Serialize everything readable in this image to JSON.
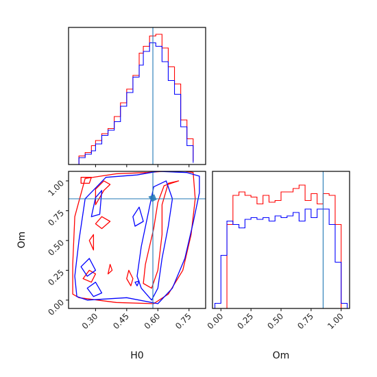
{
  "colors": {
    "series_red": "#ff0000",
    "series_blue": "#0000ff",
    "truth_line": "#1f77b4"
  },
  "chart_data": [
    {
      "type": "histogram",
      "panel": "top-left",
      "parameter": "H0",
      "xlim": [
        0.17,
        0.83
      ],
      "truth": 0.576,
      "bins": [
        0.22,
        0.25,
        0.28,
        0.3,
        0.33,
        0.36,
        0.39,
        0.42,
        0.45,
        0.48,
        0.51,
        0.53,
        0.56,
        0.59,
        0.62,
        0.65,
        0.68,
        0.71,
        0.74,
        0.77
      ],
      "series": [
        {
          "color": "red",
          "counts": [
            0.05,
            0.07,
            0.11,
            0.14,
            0.18,
            0.21,
            0.28,
            0.36,
            0.44,
            0.52,
            0.65,
            0.69,
            0.75,
            0.76,
            0.68,
            0.57,
            0.47,
            0.26,
            0.15,
            0.02
          ]
        },
        {
          "color": "blue",
          "counts": [
            0.04,
            0.06,
            0.08,
            0.12,
            0.17,
            0.2,
            0.25,
            0.34,
            0.42,
            0.51,
            0.58,
            0.66,
            0.71,
            0.69,
            0.6,
            0.49,
            0.41,
            0.22,
            0.11,
            0.01
          ]
        }
      ]
    },
    {
      "type": "histogram",
      "panel": "bottom-right",
      "parameter": "Om",
      "xlim": [
        -0.07,
        1.07
      ],
      "truth": 0.85,
      "xticks": [
        "0.00",
        "0.25",
        "0.50",
        "0.75",
        "1.00"
      ],
      "xlabel": "Om",
      "bins": [
        -0.05,
        0.0,
        0.05,
        0.1,
        0.15,
        0.2,
        0.25,
        0.3,
        0.35,
        0.4,
        0.45,
        0.5,
        0.55,
        0.6,
        0.65,
        0.7,
        0.75,
        0.8,
        0.85,
        0.9,
        0.95,
        1.0,
        1.05
      ],
      "series": [
        {
          "color": "red",
          "counts": [
            0.0,
            0.0,
            0.49,
            0.66,
            0.68,
            0.66,
            0.65,
            0.61,
            0.66,
            0.62,
            0.63,
            0.68,
            0.68,
            0.7,
            0.72,
            0.63,
            0.67,
            0.61,
            0.67,
            0.66,
            0.49,
            0.0
          ]
        },
        {
          "color": "blue",
          "counts": [
            0.03,
            0.31,
            0.51,
            0.49,
            0.47,
            0.52,
            0.53,
            0.52,
            0.53,
            0.51,
            0.54,
            0.53,
            0.54,
            0.56,
            0.51,
            0.58,
            0.53,
            0.58,
            0.58,
            0.49,
            0.27,
            0.03
          ]
        }
      ]
    },
    {
      "type": "contour",
      "panel": "bottom-left",
      "x_parameter": "H0",
      "y_parameter": "Om",
      "xlim": [
        0.17,
        0.83
      ],
      "ylim": [
        -0.07,
        1.08
      ],
      "xticks": [
        "0.30",
        "0.45",
        "0.60",
        "0.75"
      ],
      "yticks": [
        "0.00",
        "0.25",
        "0.50",
        "0.75",
        "1.00"
      ],
      "xlabel": "H0",
      "ylabel": "Om",
      "truth": [
        0.576,
        0.85
      ],
      "series": [
        {
          "color": "red",
          "contours": [
            [
              [
                0.77,
                1.07
              ],
              [
                0.7,
                1.09
              ],
              [
                0.55,
                1.07
              ],
              [
                0.4,
                1.06
              ],
              [
                0.25,
                1.02
              ],
              [
                0.2,
                0.7
              ],
              [
                0.19,
                0.3
              ],
              [
                0.19,
                0.05
              ],
              [
                0.22,
                0.02
              ],
              [
                0.4,
                -0.02
              ],
              [
                0.58,
                -0.03
              ],
              [
                0.65,
                0.05
              ],
              [
                0.72,
                0.25
              ],
              [
                0.76,
                0.55
              ],
              [
                0.78,
                0.85
              ],
              [
                0.77,
                1.07
              ]
            ],
            [
              [
                0.7,
                1.0
              ],
              [
                0.65,
                0.98
              ],
              [
                0.62,
                0.8
              ],
              [
                0.62,
                0.55
              ],
              [
                0.6,
                0.25
              ],
              [
                0.57,
                0.1
              ],
              [
                0.53,
                0.14
              ],
              [
                0.54,
                0.3
              ],
              [
                0.58,
                0.6
              ],
              [
                0.6,
                0.82
              ],
              [
                0.63,
                0.96
              ],
              [
                0.7,
                1.0
              ]
            ],
            [
              [
                0.23,
                0.98
              ],
              [
                0.27,
                0.98
              ],
              [
                0.28,
                1.03
              ],
              [
                0.23,
                1.03
              ],
              [
                0.23,
                0.98
              ]
            ],
            [
              [
                0.3,
                0.8
              ],
              [
                0.34,
                0.92
              ],
              [
                0.37,
                0.97
              ],
              [
                0.34,
                1.0
              ],
              [
                0.3,
                0.93
              ],
              [
                0.3,
                0.8
              ]
            ],
            [
              [
                0.33,
                0.7
              ],
              [
                0.37,
                0.66
              ],
              [
                0.33,
                0.6
              ],
              [
                0.3,
                0.64
              ],
              [
                0.33,
                0.7
              ]
            ],
            [
              [
                0.27,
                0.5
              ],
              [
                0.29,
                0.55
              ],
              [
                0.29,
                0.42
              ],
              [
                0.27,
                0.5
              ]
            ],
            [
              [
                0.37,
                0.3
              ],
              [
                0.38,
                0.25
              ],
              [
                0.36,
                0.22
              ],
              [
                0.37,
                0.3
              ]
            ],
            [
              [
                0.46,
                0.25
              ],
              [
                0.48,
                0.18
              ],
              [
                0.47,
                0.12
              ],
              [
                0.45,
                0.18
              ],
              [
                0.46,
                0.25
              ]
            ],
            [
              [
                0.24,
                0.18
              ],
              [
                0.27,
                0.25
              ],
              [
                0.3,
                0.22
              ],
              [
                0.28,
                0.15
              ],
              [
                0.24,
                0.18
              ]
            ]
          ]
        },
        {
          "color": "blue",
          "contours": [
            [
              [
                0.8,
                1.04
              ],
              [
                0.74,
                1.07
              ],
              [
                0.6,
                1.08
              ],
              [
                0.5,
                1.05
              ],
              [
                0.35,
                1.03
              ],
              [
                0.25,
                0.85
              ],
              [
                0.22,
                0.5
              ],
              [
                0.2,
                0.2
              ],
              [
                0.21,
                0.03
              ],
              [
                0.26,
                0.0
              ],
              [
                0.45,
                0.02
              ],
              [
                0.6,
                -0.03
              ],
              [
                0.67,
                0.1
              ],
              [
                0.73,
                0.35
              ],
              [
                0.77,
                0.65
              ],
              [
                0.8,
                0.9
              ],
              [
                0.8,
                1.04
              ]
            ],
            [
              [
                0.64,
                1.0
              ],
              [
                0.58,
                0.95
              ],
              [
                0.55,
                0.7
              ],
              [
                0.52,
                0.45
              ],
              [
                0.5,
                0.2
              ],
              [
                0.52,
                0.1
              ],
              [
                0.57,
                0.0
              ],
              [
                0.6,
                0.1
              ],
              [
                0.62,
                0.35
              ],
              [
                0.65,
                0.62
              ],
              [
                0.67,
                0.85
              ],
              [
                0.64,
                1.0
              ]
            ],
            [
              [
                0.48,
                0.7
              ],
              [
                0.51,
                0.78
              ],
              [
                0.53,
                0.66
              ],
              [
                0.49,
                0.62
              ],
              [
                0.48,
                0.7
              ]
            ],
            [
              [
                0.28,
                0.7
              ],
              [
                0.3,
                0.86
              ],
              [
                0.33,
                0.92
              ],
              [
                0.32,
                0.72
              ],
              [
                0.28,
                0.7
              ]
            ],
            [
              [
                0.23,
                0.28
              ],
              [
                0.27,
                0.35
              ],
              [
                0.3,
                0.25
              ],
              [
                0.26,
                0.2
              ],
              [
                0.23,
                0.28
              ]
            ],
            [
              [
                0.26,
                0.1
              ],
              [
                0.3,
                0.15
              ],
              [
                0.33,
                0.06
              ],
              [
                0.29,
                0.03
              ],
              [
                0.26,
                0.1
              ]
            ],
            [
              [
                0.49,
                0.15
              ],
              [
                0.51,
                0.16
              ],
              [
                0.5,
                0.12
              ],
              [
                0.49,
                0.15
              ]
            ]
          ]
        }
      ]
    }
  ]
}
